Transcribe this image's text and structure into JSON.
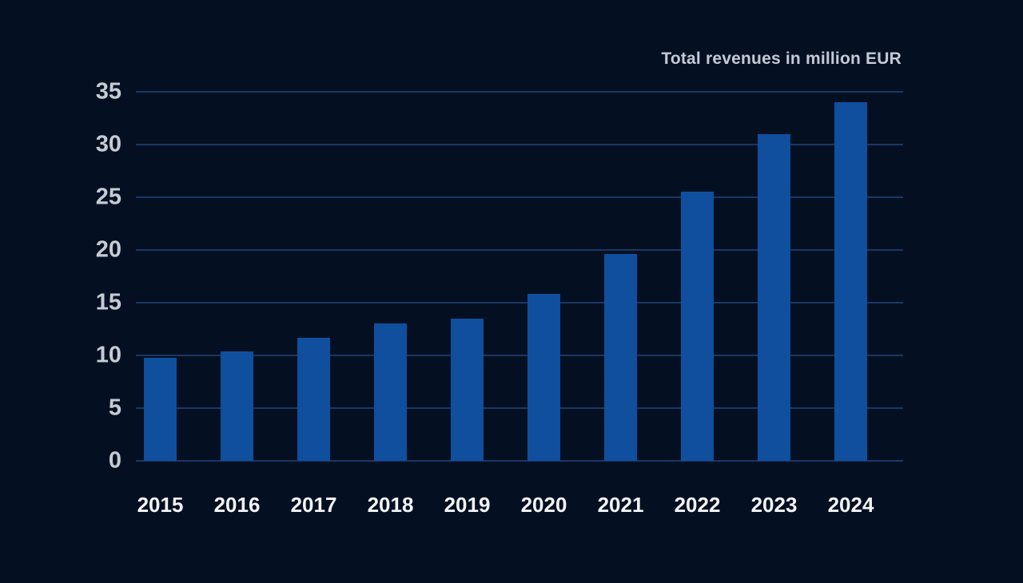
{
  "colors": {
    "background": "#041022",
    "bar": "#0f4f9e",
    "gridline": "#1c3664",
    "y_label": "#c6cbd4",
    "x_label": "#f2f4f7",
    "title": "#c4cad5"
  },
  "chart_data": {
    "type": "bar",
    "title": "Total revenues in million EUR",
    "categories": [
      "2015",
      "2016",
      "2017",
      "2018",
      "2019",
      "2020",
      "2021",
      "2022",
      "2023",
      "2024"
    ],
    "values": [
      9.8,
      10.4,
      11.7,
      13.0,
      13.5,
      15.8,
      19.6,
      25.5,
      31.0,
      34.0
    ],
    "xlabel": "",
    "ylabel": "",
    "ylim": [
      0,
      35
    ],
    "yticks": [
      0,
      5,
      10,
      15,
      20,
      25,
      30,
      35
    ],
    "grid": true,
    "legend": false,
    "bar_color": "#0f4f9e",
    "background_color": "#041022"
  }
}
